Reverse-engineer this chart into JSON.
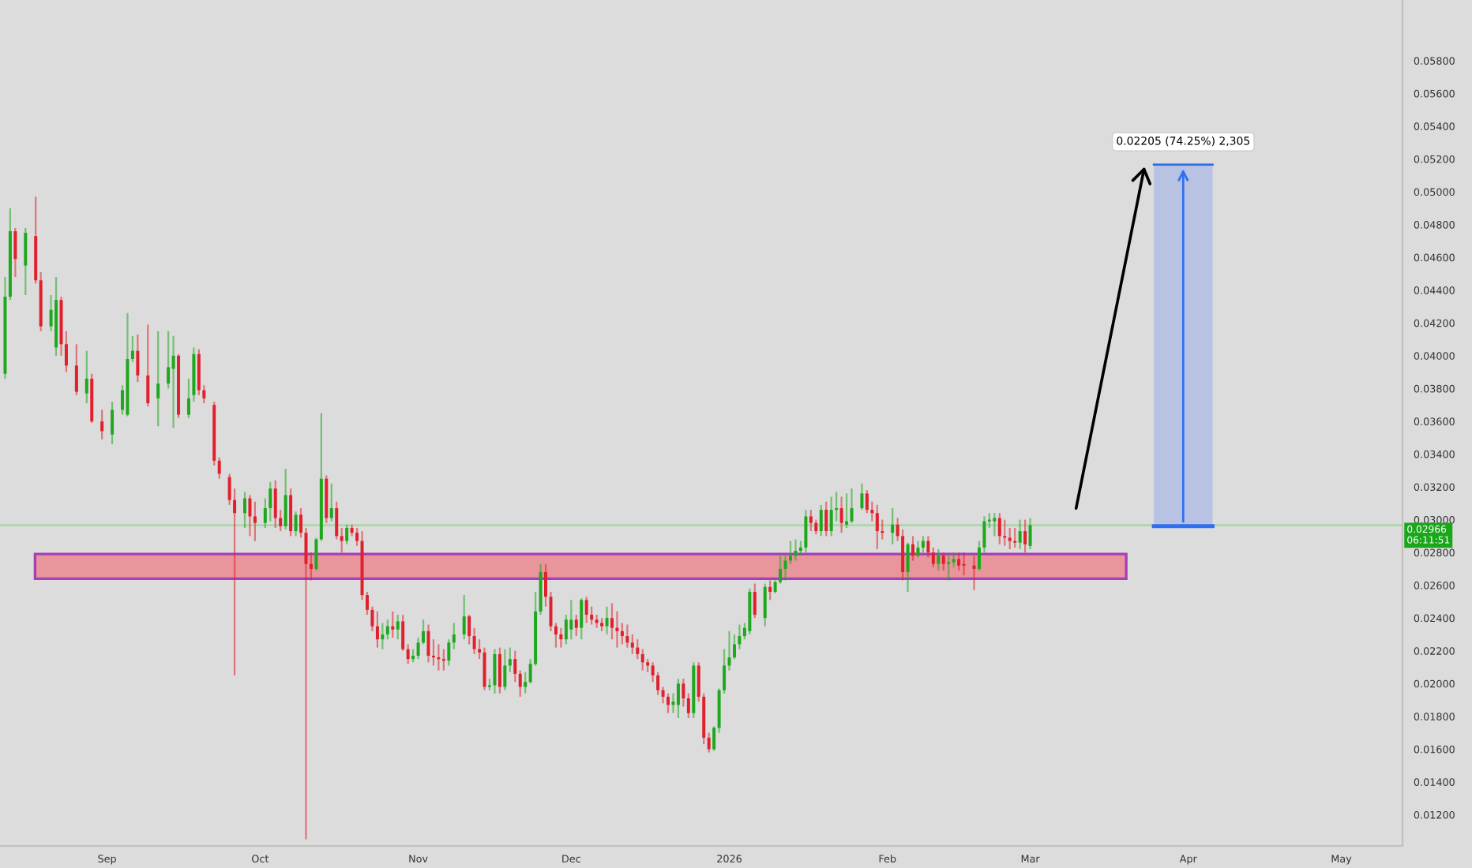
{
  "chart_data": {
    "type": "candlestick",
    "x": [
      "2025-08-12",
      "2025-08-13",
      "2025-08-14",
      "2025-08-16",
      "2025-08-18",
      "2025-08-19",
      "2025-08-21",
      "2025-08-22",
      "2025-08-23",
      "2025-08-24",
      "2025-08-26",
      "2025-08-28",
      "2025-08-29",
      "2025-08-31",
      "2025-09-02",
      "2025-09-04",
      "2025-09-05",
      "2025-09-06",
      "2025-09-07",
      "2025-09-09",
      "2025-09-11",
      "2025-09-13",
      "2025-09-14",
      "2025-09-15",
      "2025-09-17",
      "2025-09-18",
      "2025-09-19",
      "2025-09-20",
      "2025-09-22",
      "2025-09-23",
      "2025-09-25",
      "2025-09-26",
      "2025-09-28",
      "2025-09-29",
      "2025-09-30",
      "2025-10-02",
      "2025-10-03",
      "2025-10-04",
      "2025-10-05",
      "2025-10-06",
      "2025-10-07",
      "2025-10-08",
      "2025-10-09",
      "2025-10-10",
      "2025-10-11",
      "2025-10-12",
      "2025-10-13",
      "2025-10-14",
      "2025-10-15",
      "2025-10-16",
      "2025-10-17",
      "2025-10-18",
      "2025-10-19",
      "2025-10-20",
      "2025-10-21",
      "2025-10-22",
      "2025-10-23",
      "2025-10-24",
      "2025-10-25",
      "2025-10-26",
      "2025-10-27",
      "2025-10-28",
      "2025-10-29",
      "2025-10-30",
      "2025-10-31",
      "2025-11-01",
      "2025-11-02",
      "2025-11-03",
      "2025-11-04",
      "2025-11-05",
      "2025-11-06",
      "2025-11-07",
      "2025-11-08",
      "2025-11-10",
      "2025-11-11",
      "2025-11-12",
      "2025-11-13",
      "2025-11-14",
      "2025-11-15",
      "2025-11-16",
      "2025-11-17",
      "2025-11-18",
      "2025-11-19",
      "2025-11-20",
      "2025-11-21",
      "2025-11-22",
      "2025-11-23",
      "2025-11-24",
      "2025-11-25",
      "2025-11-26",
      "2025-11-27",
      "2025-11-28",
      "2025-11-29",
      "2025-11-30",
      "2025-12-01",
      "2025-12-02",
      "2025-12-03",
      "2025-12-04",
      "2025-12-05",
      "2025-12-06",
      "2025-12-07",
      "2025-12-08",
      "2025-12-09",
      "2025-12-10",
      "2025-12-11",
      "2025-12-12",
      "2025-12-13",
      "2025-12-14",
      "2025-12-15",
      "2025-12-16",
      "2025-12-17",
      "2025-12-18",
      "2025-12-19",
      "2025-12-20",
      "2025-12-21",
      "2025-12-22",
      "2025-12-23",
      "2025-12-24",
      "2025-12-25",
      "2025-12-26",
      "2025-12-27",
      "2025-12-28",
      "2025-12-29",
      "2025-12-30",
      "2025-12-31",
      "2026-01-01",
      "2026-01-02",
      "2026-01-03",
      "2026-01-04",
      "2026-01-05",
      "2026-01-06",
      "2026-01-08",
      "2026-01-09",
      "2026-01-10",
      "2026-01-11",
      "2026-01-12",
      "2026-01-13",
      "2026-01-14",
      "2026-01-15",
      "2026-01-16",
      "2026-01-17",
      "2026-01-18",
      "2026-01-19",
      "2026-01-20",
      "2026-01-21",
      "2026-01-22",
      "2026-01-23",
      "2026-01-24",
      "2026-01-25",
      "2026-01-27",
      "2026-01-28",
      "2026-01-29",
      "2026-01-30",
      "2026-01-31",
      "2026-02-02",
      "2026-02-03",
      "2026-02-04",
      "2026-02-05",
      "2026-02-06",
      "2026-02-07",
      "2026-02-08",
      "2026-02-09",
      "2026-02-10",
      "2026-02-11",
      "2026-02-12",
      "2026-02-13",
      "2026-02-14",
      "2026-02-15",
      "2026-02-16",
      "2026-02-18",
      "2026-02-19",
      "2026-02-20",
      "2026-02-21",
      "2026-02-22",
      "2026-02-23",
      "2026-02-24",
      "2026-02-25",
      "2026-02-26",
      "2026-02-27",
      "2026-02-28",
      "2026-03-01"
    ],
    "ohlc": [
      [
        0.0389,
        0.0448,
        0.0386,
        0.0436
      ],
      [
        0.0436,
        0.049,
        0.0434,
        0.0476
      ],
      [
        0.0476,
        0.0478,
        0.0448,
        0.0459
      ],
      [
        0.0455,
        0.0478,
        0.0437,
        0.0475
      ],
      [
        0.0473,
        0.0497,
        0.0444,
        0.0446
      ],
      [
        0.0446,
        0.0451,
        0.0415,
        0.0418
      ],
      [
        0.0418,
        0.0437,
        0.0415,
        0.0428
      ],
      [
        0.0405,
        0.0448,
        0.04,
        0.0434
      ],
      [
        0.0434,
        0.0436,
        0.04,
        0.0407
      ],
      [
        0.0407,
        0.0415,
        0.039,
        0.0394
      ],
      [
        0.0394,
        0.0407,
        0.0376,
        0.0378
      ],
      [
        0.0377,
        0.0403,
        0.0371,
        0.0386
      ],
      [
        0.0386,
        0.0389,
        0.0359,
        0.036
      ],
      [
        0.036,
        0.0367,
        0.0349,
        0.0354
      ],
      [
        0.0352,
        0.0372,
        0.0346,
        0.0367
      ],
      [
        0.0367,
        0.0382,
        0.0364,
        0.0379
      ],
      [
        0.0364,
        0.0426,
        0.0363,
        0.0398
      ],
      [
        0.0398,
        0.0412,
        0.0396,
        0.0403
      ],
      [
        0.0403,
        0.0413,
        0.0384,
        0.0388
      ],
      [
        0.0388,
        0.0419,
        0.0369,
        0.0371
      ],
      [
        0.0374,
        0.0415,
        0.0357,
        0.0383
      ],
      [
        0.0383,
        0.0415,
        0.038,
        0.0393
      ],
      [
        0.0392,
        0.0412,
        0.0356,
        0.04
      ],
      [
        0.04,
        0.0401,
        0.0362,
        0.0364
      ],
      [
        0.0364,
        0.0386,
        0.0362,
        0.0374
      ],
      [
        0.0376,
        0.0405,
        0.0372,
        0.0401
      ],
      [
        0.0401,
        0.0404,
        0.0376,
        0.0379
      ],
      [
        0.0379,
        0.0382,
        0.0371,
        0.0374
      ],
      [
        0.037,
        0.0372,
        0.0333,
        0.0336
      ],
      [
        0.0336,
        0.0338,
        0.0325,
        0.0328
      ],
      [
        0.0326,
        0.0328,
        0.0309,
        0.0312
      ],
      [
        0.0312,
        0.0319,
        0.0205,
        0.0304
      ],
      [
        0.0304,
        0.0317,
        0.0295,
        0.0313
      ],
      [
        0.0313,
        0.0315,
        0.029,
        0.0302
      ],
      [
        0.0302,
        0.0311,
        0.0287,
        0.0298
      ],
      [
        0.0298,
        0.0313,
        0.0295,
        0.0307
      ],
      [
        0.0307,
        0.0323,
        0.0299,
        0.0319
      ],
      [
        0.0319,
        0.0324,
        0.0295,
        0.0301
      ],
      [
        0.0301,
        0.0306,
        0.0293,
        0.0296
      ],
      [
        0.0296,
        0.0331,
        0.0294,
        0.0315
      ],
      [
        0.0315,
        0.0319,
        0.029,
        0.0293
      ],
      [
        0.0293,
        0.0305,
        0.029,
        0.0303
      ],
      [
        0.0303,
        0.0307,
        0.0289,
        0.0292
      ],
      [
        0.0292,
        0.0295,
        0.0105,
        0.0273
      ],
      [
        0.0273,
        0.028,
        0.0263,
        0.027
      ],
      [
        0.027,
        0.0289,
        0.0269,
        0.0288
      ],
      [
        0.0288,
        0.0365,
        0.0287,
        0.0325
      ],
      [
        0.0325,
        0.0327,
        0.0298,
        0.0301
      ],
      [
        0.0301,
        0.0322,
        0.0299,
        0.0307
      ],
      [
        0.0307,
        0.0311,
        0.0288,
        0.029
      ],
      [
        0.029,
        0.0295,
        0.028,
        0.0287
      ],
      [
        0.0287,
        0.0297,
        0.0285,
        0.0295
      ],
      [
        0.0295,
        0.0297,
        0.029,
        0.0292
      ],
      [
        0.0292,
        0.0295,
        0.0284,
        0.0287
      ],
      [
        0.0287,
        0.0293,
        0.0251,
        0.0254
      ],
      [
        0.0254,
        0.0256,
        0.0242,
        0.0245
      ],
      [
        0.0245,
        0.0247,
        0.0232,
        0.0235
      ],
      [
        0.0235,
        0.0244,
        0.0222,
        0.0227
      ],
      [
        0.0227,
        0.0237,
        0.0221,
        0.023
      ],
      [
        0.023,
        0.0239,
        0.0227,
        0.0235
      ],
      [
        0.0235,
        0.0244,
        0.0228,
        0.0233
      ],
      [
        0.0233,
        0.0242,
        0.0227,
        0.0238
      ],
      [
        0.0238,
        0.0242,
        0.022,
        0.0221
      ],
      [
        0.0221,
        0.0224,
        0.0212,
        0.0215
      ],
      [
        0.0215,
        0.0221,
        0.0213,
        0.0217
      ],
      [
        0.0217,
        0.0228,
        0.0215,
        0.0225
      ],
      [
        0.0225,
        0.0239,
        0.0224,
        0.0232
      ],
      [
        0.0232,
        0.0236,
        0.0213,
        0.0217
      ],
      [
        0.0217,
        0.0227,
        0.0211,
        0.0216
      ],
      [
        0.0216,
        0.0224,
        0.0208,
        0.0215
      ],
      [
        0.0215,
        0.0221,
        0.0208,
        0.0214
      ],
      [
        0.0214,
        0.0227,
        0.0211,
        0.0225
      ],
      [
        0.0225,
        0.0237,
        0.0221,
        0.023
      ],
      [
        0.023,
        0.0254,
        0.0227,
        0.0241
      ],
      [
        0.0241,
        0.0242,
        0.0224,
        0.0229
      ],
      [
        0.0229,
        0.0234,
        0.0218,
        0.0221
      ],
      [
        0.0221,
        0.0227,
        0.0215,
        0.0219
      ],
      [
        0.0219,
        0.0222,
        0.0196,
        0.0198
      ],
      [
        0.0198,
        0.0203,
        0.0196,
        0.0199
      ],
      [
        0.0199,
        0.0221,
        0.0194,
        0.0218
      ],
      [
        0.0218,
        0.0222,
        0.0194,
        0.0198
      ],
      [
        0.0198,
        0.0221,
        0.0196,
        0.0211
      ],
      [
        0.0211,
        0.0222,
        0.0207,
        0.0215
      ],
      [
        0.0215,
        0.022,
        0.0201,
        0.0206
      ],
      [
        0.0206,
        0.0208,
        0.0192,
        0.0198
      ],
      [
        0.0198,
        0.0207,
        0.0194,
        0.0201
      ],
      [
        0.0201,
        0.0215,
        0.02,
        0.0212
      ],
      [
        0.0212,
        0.0256,
        0.0211,
        0.0244
      ],
      [
        0.0244,
        0.0273,
        0.0242,
        0.0268
      ],
      [
        0.0268,
        0.0273,
        0.0247,
        0.0253
      ],
      [
        0.0253,
        0.0256,
        0.0232,
        0.0235
      ],
      [
        0.0235,
        0.0237,
        0.0222,
        0.023
      ],
      [
        0.023,
        0.0234,
        0.0222,
        0.0227
      ],
      [
        0.0227,
        0.0242,
        0.0224,
        0.0239
      ],
      [
        0.0233,
        0.0251,
        0.0227,
        0.0239
      ],
      [
        0.0239,
        0.0242,
        0.0229,
        0.0234
      ],
      [
        0.0234,
        0.0252,
        0.0227,
        0.0251
      ],
      [
        0.0251,
        0.0253,
        0.0237,
        0.0242
      ],
      [
        0.0242,
        0.0247,
        0.0236,
        0.0239
      ],
      [
        0.0239,
        0.0242,
        0.0234,
        0.0237
      ],
      [
        0.0237,
        0.024,
        0.0232,
        0.0235
      ],
      [
        0.0235,
        0.0247,
        0.023,
        0.024
      ],
      [
        0.024,
        0.0249,
        0.0227,
        0.0234
      ],
      [
        0.0234,
        0.0244,
        0.0222,
        0.0232
      ],
      [
        0.0232,
        0.0237,
        0.0224,
        0.0229
      ],
      [
        0.0229,
        0.0236,
        0.0222,
        0.0225
      ],
      [
        0.0225,
        0.023,
        0.0218,
        0.0222
      ],
      [
        0.0222,
        0.0227,
        0.0215,
        0.0218
      ],
      [
        0.0218,
        0.0221,
        0.0208,
        0.0213
      ],
      [
        0.0213,
        0.0215,
        0.0207,
        0.0211
      ],
      [
        0.0211,
        0.0213,
        0.0201,
        0.0205
      ],
      [
        0.0205,
        0.0207,
        0.0193,
        0.0196
      ],
      [
        0.0196,
        0.0198,
        0.0188,
        0.0192
      ],
      [
        0.0192,
        0.0194,
        0.0182,
        0.0187
      ],
      [
        0.0187,
        0.0194,
        0.0182,
        0.0189
      ],
      [
        0.0187,
        0.0203,
        0.0179,
        0.02
      ],
      [
        0.02,
        0.0203,
        0.0186,
        0.0191
      ],
      [
        0.0191,
        0.0194,
        0.0179,
        0.0182
      ],
      [
        0.0182,
        0.0213,
        0.0179,
        0.0211
      ],
      [
        0.0211,
        0.0213,
        0.0189,
        0.0192
      ],
      [
        0.0192,
        0.0194,
        0.0163,
        0.0167
      ],
      [
        0.0167,
        0.017,
        0.0158,
        0.016
      ],
      [
        0.016,
        0.0174,
        0.0159,
        0.0173
      ],
      [
        0.0173,
        0.0197,
        0.017,
        0.0196
      ],
      [
        0.0196,
        0.0221,
        0.0194,
        0.0211
      ],
      [
        0.0211,
        0.0232,
        0.0208,
        0.0216
      ],
      [
        0.0216,
        0.023,
        0.0215,
        0.0224
      ],
      [
        0.0224,
        0.0236,
        0.0221,
        0.0229
      ],
      [
        0.0229,
        0.0237,
        0.0227,
        0.0234
      ],
      [
        0.0232,
        0.0258,
        0.023,
        0.0256
      ],
      [
        0.0256,
        0.0261,
        0.024,
        0.0242
      ],
      [
        0.024,
        0.0261,
        0.0235,
        0.0259
      ],
      [
        0.0259,
        0.0263,
        0.0251,
        0.0256
      ],
      [
        0.0256,
        0.0263,
        0.0255,
        0.0262
      ],
      [
        0.0262,
        0.0278,
        0.0261,
        0.027
      ],
      [
        0.027,
        0.0278,
        0.0263,
        0.0275
      ],
      [
        0.0275,
        0.0287,
        0.0273,
        0.0278
      ],
      [
        0.0278,
        0.0288,
        0.0275,
        0.0281
      ],
      [
        0.0281,
        0.0287,
        0.0278,
        0.0283
      ],
      [
        0.0283,
        0.0306,
        0.028,
        0.0302
      ],
      [
        0.0302,
        0.0306,
        0.0293,
        0.0298
      ],
      [
        0.0298,
        0.03,
        0.0291,
        0.0293
      ],
      [
        0.0293,
        0.0309,
        0.029,
        0.0306
      ],
      [
        0.0306,
        0.0311,
        0.029,
        0.0293
      ],
      [
        0.0293,
        0.0314,
        0.029,
        0.0306
      ],
      [
        0.0306,
        0.0317,
        0.0299,
        0.0307
      ],
      [
        0.0307,
        0.0314,
        0.0292,
        0.0298
      ],
      [
        0.0297,
        0.0316,
        0.0295,
        0.0299
      ],
      [
        0.0299,
        0.0319,
        0.0298,
        0.0307
      ],
      [
        0.0307,
        0.0322,
        0.0306,
        0.0316
      ],
      [
        0.0316,
        0.0318,
        0.0304,
        0.0306
      ],
      [
        0.0306,
        0.0311,
        0.0299,
        0.0304
      ],
      [
        0.0304,
        0.0309,
        0.0282,
        0.0293
      ],
      [
        0.0293,
        0.03,
        0.0288,
        0.0292
      ],
      [
        0.0292,
        0.0307,
        0.0285,
        0.0297
      ],
      [
        0.0297,
        0.0301,
        0.0287,
        0.029
      ],
      [
        0.029,
        0.0294,
        0.0263,
        0.0268
      ],
      [
        0.0268,
        0.0286,
        0.0256,
        0.0285
      ],
      [
        0.0285,
        0.029,
        0.0275,
        0.0278
      ],
      [
        0.0278,
        0.0287,
        0.0277,
        0.0283
      ],
      [
        0.0283,
        0.029,
        0.028,
        0.0287
      ],
      [
        0.0287,
        0.029,
        0.0277,
        0.028
      ],
      [
        0.028,
        0.0283,
        0.0271,
        0.0273
      ],
      [
        0.0273,
        0.0282,
        0.0269,
        0.0278
      ],
      [
        0.0278,
        0.028,
        0.0269,
        0.0273
      ],
      [
        0.0273,
        0.0278,
        0.0263,
        0.0274
      ],
      [
        0.0274,
        0.028,
        0.0271,
        0.0276
      ],
      [
        0.0276,
        0.028,
        0.0269,
        0.0272
      ],
      [
        0.0273,
        0.028,
        0.0266,
        0.0272
      ],
      [
        0.0272,
        0.0278,
        0.0257,
        0.027
      ],
      [
        0.027,
        0.0287,
        0.0269,
        0.0283
      ],
      [
        0.0283,
        0.0302,
        0.028,
        0.0299
      ],
      [
        0.0299,
        0.0304,
        0.0295,
        0.03
      ],
      [
        0.0299,
        0.0304,
        0.029,
        0.0301
      ],
      [
        0.0301,
        0.0304,
        0.0285,
        0.029
      ],
      [
        0.029,
        0.03,
        0.0284,
        0.0289
      ],
      [
        0.0289,
        0.0295,
        0.0282,
        0.0287
      ],
      [
        0.0287,
        0.0295,
        0.0283,
        0.0286
      ],
      [
        0.0286,
        0.03,
        0.0282,
        0.0293
      ],
      [
        0.0293,
        0.03,
        0.028,
        0.0285
      ],
      [
        0.0284,
        0.0301,
        0.0282,
        0.02966
      ]
    ],
    "series": [
      {
        "type": "bar",
        "x": [
          "2026-03-31"
        ],
        "base": [
          0.02961
        ],
        "values": [
          0.02205
        ],
        "color": "#b8c3e3"
      }
    ],
    "xlim": [
      "2025-08-11",
      "2026-05-13"
    ],
    "xticks": [
      {
        "value": "2025-09-01",
        "label": "Sep"
      },
      {
        "value": "2025-10-01",
        "label": "Oct"
      },
      {
        "value": "2025-11-01",
        "label": "Nov"
      },
      {
        "value": "2025-12-01",
        "label": "Dec"
      },
      {
        "value": "2026-01-01",
        "label": "2026"
      },
      {
        "value": "2026-02-01",
        "label": "Feb"
      },
      {
        "value": "2026-03-01",
        "label": "Mar"
      },
      {
        "value": "2026-04-01",
        "label": "Apr"
      },
      {
        "value": "2026-05-01",
        "label": "May"
      }
    ],
    "ylim": [
      0.0101,
      0.0617
    ],
    "yticks": [
      {
        "value": 0.012,
        "label": "0.01200"
      },
      {
        "value": 0.014,
        "label": "0.01400"
      },
      {
        "value": 0.016,
        "label": "0.01600"
      },
      {
        "value": 0.018,
        "label": "0.01800"
      },
      {
        "value": 0.02,
        "label": "0.02000"
      },
      {
        "value": 0.022,
        "label": "0.02200"
      },
      {
        "value": 0.024,
        "label": "0.02400"
      },
      {
        "value": 0.026,
        "label": "0.02600"
      },
      {
        "value": 0.028,
        "label": "0.02800"
      },
      {
        "value": 0.03,
        "label": "0.03000"
      },
      {
        "value": 0.032,
        "label": "0.03200"
      },
      {
        "value": 0.034,
        "label": "0.03400"
      },
      {
        "value": 0.036,
        "label": "0.03600"
      },
      {
        "value": 0.038,
        "label": "0.03800"
      },
      {
        "value": 0.04,
        "label": "0.04000"
      },
      {
        "value": 0.042,
        "label": "0.04200"
      },
      {
        "value": 0.044,
        "label": "0.04400"
      },
      {
        "value": 0.046,
        "label": "0.04600"
      },
      {
        "value": 0.048,
        "label": "0.04800"
      },
      {
        "value": 0.05,
        "label": "0.05000"
      },
      {
        "value": 0.052,
        "label": "0.05200"
      },
      {
        "value": 0.054,
        "label": "0.05400"
      },
      {
        "value": 0.056,
        "label": "0.05600"
      },
      {
        "value": 0.058,
        "label": "0.05800"
      }
    ],
    "bands": [
      {
        "axis": "y",
        "from": 0.0264,
        "to": 0.0279,
        "color": "#e8959b"
      }
    ],
    "ref_lines": [
      {
        "axis": "y",
        "value": 0.02966,
        "label": "0.02966\n06:11:51",
        "color": "#a9d8aa"
      }
    ],
    "annotations": [
      {
        "text": "0.02205 (74.25%) 2,305",
        "x": "2026-03-31",
        "y": 0.05166
      }
    ],
    "grid": false
  }
}
